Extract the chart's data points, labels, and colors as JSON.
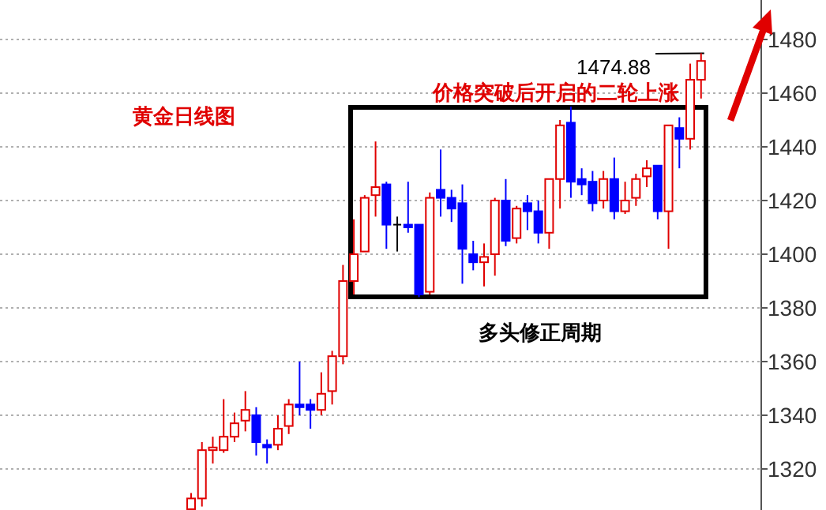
{
  "chart_data": {
    "type": "candlestick",
    "categories": [
      null,
      null,
      null,
      null,
      null,
      null,
      null,
      null,
      null,
      null,
      null,
      null,
      null,
      null,
      null,
      null,
      null,
      null,
      null,
      null,
      null,
      null,
      null,
      null,
      null,
      null,
      null,
      null,
      null,
      null,
      null,
      null,
      null,
      null,
      null,
      null,
      null,
      null,
      null,
      null,
      null,
      null,
      null,
      null,
      null,
      null,
      null,
      null
    ],
    "ohlc": [
      [
        1305,
        1311,
        1305,
        1309
      ],
      [
        1309,
        1330,
        1306,
        1327
      ],
      [
        1327,
        1332,
        1322,
        1328
      ],
      [
        1327,
        1346,
        1326,
        1332
      ],
      [
        1332,
        1341,
        1330,
        1337
      ],
      [
        1338,
        1349,
        1334,
        1342
      ],
      [
        1340,
        1343,
        1325,
        1330
      ],
      [
        1329,
        1331,
        1322,
        1328
      ],
      [
        1329,
        1340,
        1327,
        1335
      ],
      [
        1336,
        1346,
        1333,
        1344
      ],
      [
        1344,
        1360,
        1340,
        1343
      ],
      [
        1344,
        1346,
        1335,
        1342
      ],
      [
        1342,
        1356,
        1340,
        1348
      ],
      [
        1349,
        1364,
        1344,
        1362
      ],
      [
        1362,
        1396,
        1359,
        1390
      ],
      [
        1390,
        1413,
        1385,
        1400
      ],
      [
        1401,
        1422,
        1401,
        1421
      ],
      [
        1422,
        1442,
        1414,
        1425
      ],
      [
        1426,
        1427,
        1402,
        1411
      ],
      [
        1411,
        1414,
        1401,
        1411
      ],
      [
        1411,
        1427,
        1408,
        1410
      ],
      [
        1411,
        1411,
        1384,
        1385
      ],
      [
        1386,
        1423,
        1385,
        1421
      ],
      [
        1424,
        1439,
        1414,
        1421
      ],
      [
        1421,
        1424,
        1412,
        1417
      ],
      [
        1419,
        1426,
        1389,
        1402
      ],
      [
        1400,
        1405,
        1394,
        1397
      ],
      [
        1397,
        1404,
        1388,
        1399
      ],
      [
        1400,
        1421,
        1392,
        1420
      ],
      [
        1420,
        1428,
        1403,
        1405
      ],
      [
        1406,
        1418,
        1404,
        1417
      ],
      [
        1419,
        1422,
        1409,
        1416
      ],
      [
        1416,
        1420,
        1404,
        1408
      ],
      [
        1408,
        1428,
        1402,
        1428
      ],
      [
        1428,
        1450,
        1417,
        1448
      ],
      [
        1449,
        1455,
        1421,
        1427
      ],
      [
        1428,
        1432,
        1422,
        1426
      ],
      [
        1427,
        1431,
        1416,
        1419
      ],
      [
        1420,
        1431,
        1417,
        1428
      ],
      [
        1428,
        1436,
        1413,
        1416
      ],
      [
        1416,
        1427,
        1415,
        1420
      ],
      [
        1421,
        1430,
        1418,
        1428
      ],
      [
        1429,
        1435,
        1425,
        1432
      ],
      [
        1433,
        1433,
        1413,
        1416
      ],
      [
        1416,
        1448,
        1402,
        1448
      ],
      [
        1447,
        1451,
        1432,
        1443
      ],
      [
        1443,
        1471,
        1439,
        1465
      ],
      [
        1465,
        1474.88,
        1458,
        1472
      ]
    ],
    "colors": [
      "#e00000",
      "#e00000",
      "#e00000",
      "#e00000",
      "#e00000",
      "#e00000",
      "#0000ff",
      "#0000ff",
      "#e00000",
      "#e00000",
      "#0000ff",
      "#0000ff",
      "#e00000",
      "#e00000",
      "#e00000",
      "#e00000",
      "#e00000",
      "#e00000",
      "#0000ff",
      "#000000",
      "#0000ff",
      "#0000ff",
      "#e00000",
      "#0000ff",
      "#0000ff",
      "#0000ff",
      "#0000ff",
      "#e00000",
      "#e00000",
      "#0000ff",
      "#e00000",
      "#0000ff",
      "#0000ff",
      "#e00000",
      "#e00000",
      "#0000ff",
      "#0000ff",
      "#0000ff",
      "#e00000",
      "#0000ff",
      "#e00000",
      "#e00000",
      "#e00000",
      "#0000ff",
      "#e00000",
      "#0000ff",
      "#e00000",
      "#e00000"
    ],
    "ylim": [
      1304.7,
      1494.7
    ],
    "yticks": [
      1320,
      1340,
      1360,
      1380,
      1400,
      1420,
      1440,
      1460,
      1480
    ],
    "grid": "y",
    "tick_labels": "y",
    "annotations": [
      "黄金日线图",
      "1474.88",
      "价格突破后开启的二轮上涨",
      "多头修正周期"
    ]
  }
}
